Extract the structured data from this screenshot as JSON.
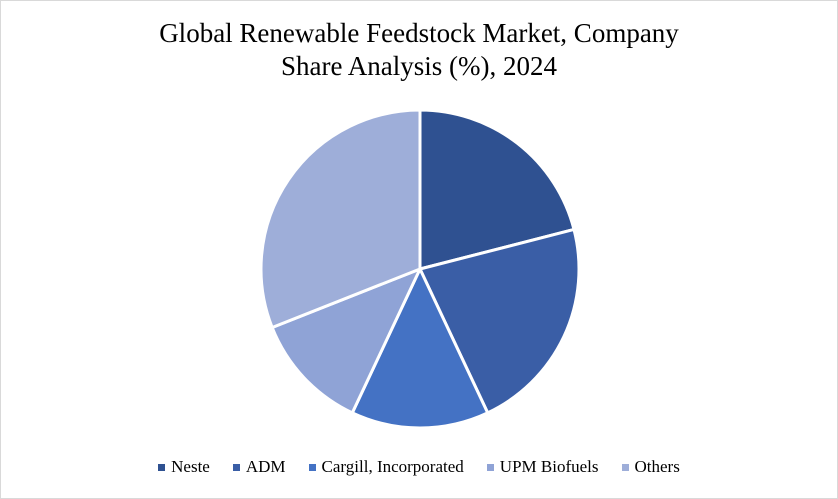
{
  "chart_data": {
    "type": "pie",
    "title_lines": [
      "Global Renewable Feedstock Market, Company",
      "Share Analysis (%), 2024"
    ],
    "categories": [
      "Neste",
      "ADM",
      "Cargill, Incorporated",
      "UPM Biofuels",
      "Others"
    ],
    "values": [
      21,
      22,
      14,
      12,
      31
    ],
    "colors": [
      "#2f5191",
      "#3a5ea6",
      "#4472c4",
      "#8fa3d6",
      "#9eaed9"
    ],
    "start_angle_deg": 0,
    "direction": "clockwise",
    "legend_position": "bottom"
  }
}
